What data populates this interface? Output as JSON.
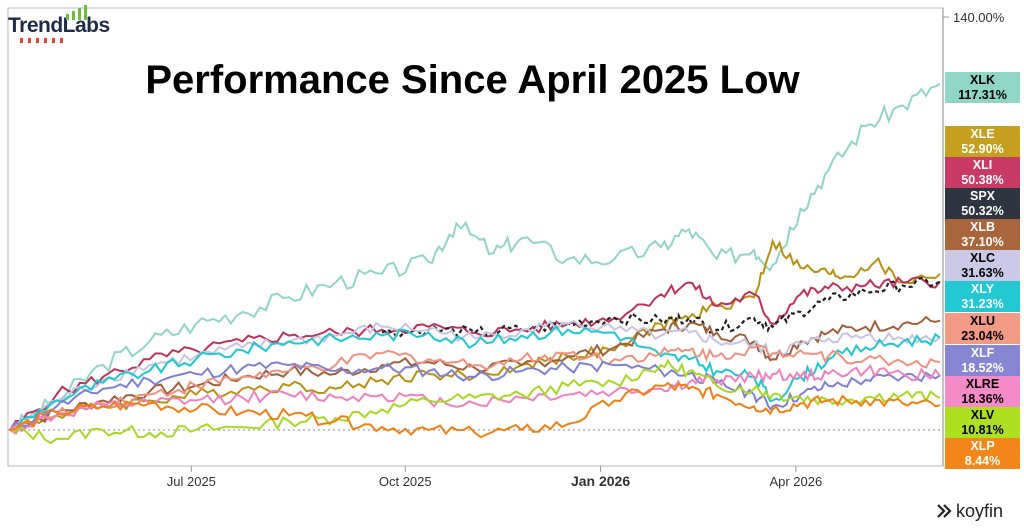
{
  "brand": {
    "logo_text": "TrendLabs",
    "source": "koyfin"
  },
  "colors": {
    "background": "#ffffff",
    "baseline": "#888888",
    "border": "#888888"
  },
  "chart_data": {
    "type": "line",
    "title": "Performance Since April 2025 Low",
    "xlabel": "",
    "ylabel": "",
    "x_ticks": [
      "Jul 2025",
      "Oct 2025",
      "Jan 2026",
      "Apr 2026"
    ],
    "y_ticks": [
      "140.00%"
    ],
    "ylim": [
      -5,
      140
    ],
    "grid": false,
    "series": [
      {
        "name": "XLK",
        "label": "117.31%",
        "final": 117.31,
        "color": "#8fd6c6",
        "label_bg": "#8fd6c6",
        "label_fg": "#000000",
        "points": [
          [
            0,
            0
          ],
          [
            0.05,
            10
          ],
          [
            0.1,
            22
          ],
          [
            0.15,
            30
          ],
          [
            0.2,
            36
          ],
          [
            0.25,
            40
          ],
          [
            0.3,
            45
          ],
          [
            0.35,
            50
          ],
          [
            0.4,
            53
          ],
          [
            0.45,
            57
          ],
          [
            0.48,
            70
          ],
          [
            0.52,
            60
          ],
          [
            0.55,
            65
          ],
          [
            0.6,
            58
          ],
          [
            0.65,
            58
          ],
          [
            0.7,
            62
          ],
          [
            0.73,
            68
          ],
          [
            0.76,
            58
          ],
          [
            0.8,
            61
          ],
          [
            0.82,
            56
          ],
          [
            0.85,
            75
          ],
          [
            0.88,
            88
          ],
          [
            0.92,
            103
          ],
          [
            0.96,
            110
          ],
          [
            1.0,
            117.31
          ]
        ]
      },
      {
        "name": "XLE",
        "label": "52.90%",
        "final": 52.9,
        "color": "#b8920f",
        "label_bg": "#c8a020",
        "label_fg": "#ffffff",
        "points": [
          [
            0,
            0
          ],
          [
            0.05,
            5
          ],
          [
            0.1,
            8
          ],
          [
            0.15,
            10
          ],
          [
            0.2,
            12
          ],
          [
            0.25,
            14
          ],
          [
            0.3,
            15
          ],
          [
            0.35,
            14
          ],
          [
            0.4,
            17
          ],
          [
            0.45,
            19
          ],
          [
            0.5,
            18
          ],
          [
            0.55,
            22
          ],
          [
            0.6,
            25
          ],
          [
            0.65,
            27
          ],
          [
            0.7,
            36
          ],
          [
            0.73,
            38
          ],
          [
            0.76,
            42
          ],
          [
            0.8,
            45
          ],
          [
            0.82,
            64
          ],
          [
            0.85,
            55
          ],
          [
            0.88,
            53
          ],
          [
            0.9,
            52
          ],
          [
            0.93,
            57
          ],
          [
            0.96,
            50
          ],
          [
            1.0,
            52.9
          ]
        ]
      },
      {
        "name": "XLI",
        "label": "50.38%",
        "final": 50.38,
        "color": "#c0305a",
        "label_bg": "#c93a66",
        "label_fg": "#ffffff",
        "points": [
          [
            0,
            0
          ],
          [
            0.05,
            12
          ],
          [
            0.1,
            18
          ],
          [
            0.15,
            24
          ],
          [
            0.2,
            27
          ],
          [
            0.25,
            30
          ],
          [
            0.3,
            32
          ],
          [
            0.35,
            33
          ],
          [
            0.4,
            34
          ],
          [
            0.45,
            35
          ],
          [
            0.5,
            33
          ],
          [
            0.55,
            34
          ],
          [
            0.6,
            36
          ],
          [
            0.65,
            38
          ],
          [
            0.7,
            46
          ],
          [
            0.73,
            50
          ],
          [
            0.76,
            42
          ],
          [
            0.8,
            46
          ],
          [
            0.82,
            36
          ],
          [
            0.85,
            46
          ],
          [
            0.88,
            48
          ],
          [
            0.92,
            49
          ],
          [
            0.96,
            50
          ],
          [
            1.0,
            50.38
          ]
        ]
      },
      {
        "name": "SPX",
        "label": "50.32%",
        "final": 50.32,
        "color": "#222222",
        "label_bg": "#2e3440",
        "label_fg": "#ffffff",
        "dashed": true,
        "points": [
          [
            0.4,
            33
          ],
          [
            0.45,
            34
          ],
          [
            0.5,
            33
          ],
          [
            0.55,
            34
          ],
          [
            0.6,
            36
          ],
          [
            0.65,
            38
          ],
          [
            0.7,
            37
          ],
          [
            0.73,
            38
          ],
          [
            0.76,
            34
          ],
          [
            0.8,
            38
          ],
          [
            0.82,
            35
          ],
          [
            0.85,
            40
          ],
          [
            0.88,
            44
          ],
          [
            0.92,
            47
          ],
          [
            0.96,
            49
          ],
          [
            1.0,
            50.32
          ]
        ]
      },
      {
        "name": "XLB",
        "label": "37.10%",
        "final": 37.1,
        "color": "#a0603a",
        "label_bg": "#a9653c",
        "label_fg": "#ffffff",
        "points": [
          [
            0,
            0
          ],
          [
            0.05,
            6
          ],
          [
            0.1,
            10
          ],
          [
            0.15,
            13
          ],
          [
            0.2,
            15
          ],
          [
            0.25,
            18
          ],
          [
            0.3,
            20
          ],
          [
            0.35,
            19
          ],
          [
            0.4,
            22
          ],
          [
            0.45,
            23
          ],
          [
            0.5,
            21
          ],
          [
            0.55,
            22
          ],
          [
            0.6,
            25
          ],
          [
            0.65,
            28
          ],
          [
            0.7,
            34
          ],
          [
            0.73,
            36
          ],
          [
            0.76,
            33
          ],
          [
            0.8,
            30
          ],
          [
            0.82,
            24
          ],
          [
            0.85,
            30
          ],
          [
            0.88,
            33
          ],
          [
            0.92,
            35
          ],
          [
            0.96,
            36
          ],
          [
            1.0,
            37.1
          ]
        ]
      },
      {
        "name": "XLC",
        "label": "31.63%",
        "final": 31.63,
        "color": "#c8c4e4",
        "label_bg": "#ccc8e8",
        "label_fg": "#000000",
        "points": [
          [
            0,
            0
          ],
          [
            0.05,
            10
          ],
          [
            0.1,
            17
          ],
          [
            0.15,
            22
          ],
          [
            0.2,
            25
          ],
          [
            0.25,
            28
          ],
          [
            0.3,
            30
          ],
          [
            0.35,
            32
          ],
          [
            0.4,
            35
          ],
          [
            0.45,
            34
          ],
          [
            0.5,
            31
          ],
          [
            0.55,
            34
          ],
          [
            0.6,
            36
          ],
          [
            0.65,
            34
          ],
          [
            0.7,
            32
          ],
          [
            0.73,
            33
          ],
          [
            0.76,
            30
          ],
          [
            0.8,
            29
          ],
          [
            0.82,
            26
          ],
          [
            0.85,
            29
          ],
          [
            0.88,
            31
          ],
          [
            0.92,
            32
          ],
          [
            0.96,
            31
          ],
          [
            1.0,
            31.63
          ]
        ]
      },
      {
        "name": "XLY",
        "label": "31.23%",
        "final": 31.23,
        "color": "#1ec8d0",
        "label_bg": "#22c9d2",
        "label_fg": "#ffffff",
        "points": [
          [
            0,
            0
          ],
          [
            0.05,
            10
          ],
          [
            0.1,
            16
          ],
          [
            0.15,
            20
          ],
          [
            0.2,
            24
          ],
          [
            0.25,
            27
          ],
          [
            0.3,
            30
          ],
          [
            0.35,
            31
          ],
          [
            0.4,
            32
          ],
          [
            0.45,
            33
          ],
          [
            0.5,
            29
          ],
          [
            0.55,
            32
          ],
          [
            0.6,
            34
          ],
          [
            0.65,
            33
          ],
          [
            0.7,
            25
          ],
          [
            0.73,
            24
          ],
          [
            0.76,
            20
          ],
          [
            0.8,
            18
          ],
          [
            0.82,
            10
          ],
          [
            0.85,
            18
          ],
          [
            0.88,
            24
          ],
          [
            0.92,
            28
          ],
          [
            0.96,
            30
          ],
          [
            1.0,
            31.23
          ]
        ]
      },
      {
        "name": "XLU",
        "label": "23.04%",
        "final": 23.04,
        "color": "#f09080",
        "label_bg": "#f29a86",
        "label_fg": "#000000",
        "points": [
          [
            0,
            0
          ],
          [
            0.05,
            5
          ],
          [
            0.1,
            9
          ],
          [
            0.15,
            12
          ],
          [
            0.2,
            15
          ],
          [
            0.25,
            18
          ],
          [
            0.3,
            20
          ],
          [
            0.35,
            22
          ],
          [
            0.4,
            26
          ],
          [
            0.45,
            24
          ],
          [
            0.5,
            22
          ],
          [
            0.55,
            24
          ],
          [
            0.6,
            26
          ],
          [
            0.65,
            24
          ],
          [
            0.7,
            26
          ],
          [
            0.73,
            27
          ],
          [
            0.76,
            25
          ],
          [
            0.8,
            28
          ],
          [
            0.82,
            26
          ],
          [
            0.85,
            27
          ],
          [
            0.88,
            25
          ],
          [
            0.92,
            24
          ],
          [
            0.96,
            23
          ],
          [
            1.0,
            23.04
          ]
        ]
      },
      {
        "name": "XLF",
        "label": "18.52%",
        "final": 18.52,
        "color": "#8080d0",
        "label_bg": "#8686d4",
        "label_fg": "#ffffff",
        "points": [
          [
            0,
            0
          ],
          [
            0.05,
            8
          ],
          [
            0.1,
            14
          ],
          [
            0.15,
            17
          ],
          [
            0.2,
            19
          ],
          [
            0.25,
            21
          ],
          [
            0.3,
            22
          ],
          [
            0.35,
            20
          ],
          [
            0.4,
            21
          ],
          [
            0.45,
            20
          ],
          [
            0.5,
            18
          ],
          [
            0.55,
            20
          ],
          [
            0.6,
            21
          ],
          [
            0.65,
            22
          ],
          [
            0.7,
            20
          ],
          [
            0.73,
            19
          ],
          [
            0.76,
            16
          ],
          [
            0.8,
            12
          ],
          [
            0.82,
            8
          ],
          [
            0.85,
            12
          ],
          [
            0.88,
            15
          ],
          [
            0.92,
            17
          ],
          [
            0.96,
            18
          ],
          [
            1.0,
            18.52
          ]
        ]
      },
      {
        "name": "XLRE",
        "label": "18.36%",
        "final": 18.36,
        "color": "#f080c0",
        "label_bg": "#f58ac8",
        "label_fg": "#000000",
        "points": [
          [
            0,
            0
          ],
          [
            0.05,
            5
          ],
          [
            0.1,
            8
          ],
          [
            0.15,
            9
          ],
          [
            0.2,
            10
          ],
          [
            0.25,
            11
          ],
          [
            0.3,
            12
          ],
          [
            0.35,
            11
          ],
          [
            0.4,
            12
          ],
          [
            0.45,
            10
          ],
          [
            0.5,
            9
          ],
          [
            0.55,
            11
          ],
          [
            0.6,
            12
          ],
          [
            0.65,
            13
          ],
          [
            0.7,
            14
          ],
          [
            0.73,
            16
          ],
          [
            0.76,
            17
          ],
          [
            0.8,
            18
          ],
          [
            0.82,
            19
          ],
          [
            0.85,
            18
          ],
          [
            0.88,
            19
          ],
          [
            0.92,
            20
          ],
          [
            0.96,
            19
          ],
          [
            1.0,
            18.36
          ]
        ]
      },
      {
        "name": "XLV",
        "label": "10.81%",
        "final": 10.81,
        "color": "#a8d820",
        "label_bg": "#aee022",
        "label_fg": "#000000",
        "points": [
          [
            0,
            0
          ],
          [
            0.05,
            -3
          ],
          [
            0.1,
            0
          ],
          [
            0.15,
            -1
          ],
          [
            0.2,
            0
          ],
          [
            0.25,
            1
          ],
          [
            0.3,
            3
          ],
          [
            0.35,
            4
          ],
          [
            0.4,
            7
          ],
          [
            0.45,
            10
          ],
          [
            0.5,
            11
          ],
          [
            0.55,
            12
          ],
          [
            0.6,
            15
          ],
          [
            0.65,
            16
          ],
          [
            0.7,
            22
          ],
          [
            0.73,
            20
          ],
          [
            0.76,
            15
          ],
          [
            0.8,
            14
          ],
          [
            0.82,
            12
          ],
          [
            0.85,
            11
          ],
          [
            0.88,
            10
          ],
          [
            0.92,
            11
          ],
          [
            0.96,
            12
          ],
          [
            1.0,
            10.81
          ]
        ]
      },
      {
        "name": "XLP",
        "label": "8.44%",
        "final": 8.44,
        "color": "#f08010",
        "label_bg": "#f5871a",
        "label_fg": "#ffffff",
        "points": [
          [
            0,
            0
          ],
          [
            0.05,
            6
          ],
          [
            0.1,
            8
          ],
          [
            0.15,
            9
          ],
          [
            0.2,
            7
          ],
          [
            0.25,
            6
          ],
          [
            0.3,
            5
          ],
          [
            0.35,
            3
          ],
          [
            0.4,
            1
          ],
          [
            0.45,
            0
          ],
          [
            0.5,
            -1
          ],
          [
            0.55,
            0
          ],
          [
            0.6,
            2
          ],
          [
            0.65,
            10
          ],
          [
            0.7,
            15
          ],
          [
            0.73,
            14
          ],
          [
            0.76,
            12
          ],
          [
            0.8,
            8
          ],
          [
            0.82,
            7
          ],
          [
            0.85,
            9
          ],
          [
            0.88,
            10
          ],
          [
            0.92,
            10
          ],
          [
            0.96,
            9
          ],
          [
            1.0,
            8.44
          ]
        ]
      }
    ]
  }
}
